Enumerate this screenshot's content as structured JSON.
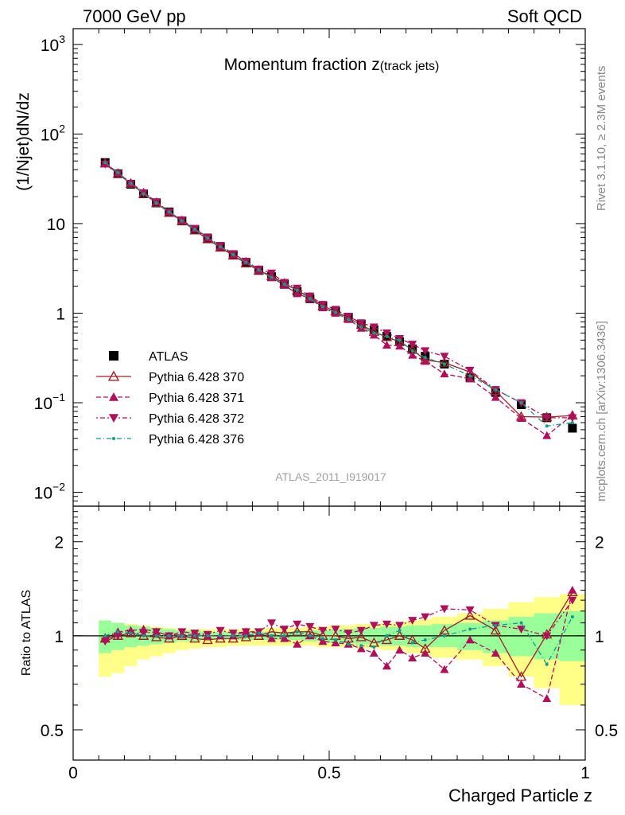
{
  "header": {
    "left": "7000 GeV pp",
    "right": "Soft QCD"
  },
  "side_labels": {
    "top": "Rivet 3.1.10, ≥ 2.3M events",
    "bottom": "mcplots.cern.ch [arXiv:1306.3436]"
  },
  "plot_title_main": "Momentum fraction z",
  "plot_title_sub": "(track jets)",
  "analysis_label": "ATLAS_2011_I919017",
  "top_ylabel": "(1/Njet)dN/dz",
  "bottom_ylabel": "Ratio to ATLAS",
  "xlabel": "Charged Particle z",
  "colors": {
    "atlas": "#000000",
    "p370": "#a0202a",
    "p371": "#b0105a",
    "p372": "#b0105a",
    "p376": "#139a8a",
    "band_green": "#99ff99",
    "band_yellow": "#ffff88"
  },
  "legend": [
    {
      "key": "atlas",
      "label": "ATLAS"
    },
    {
      "key": "p370",
      "label": "Pythia 6.428 370"
    },
    {
      "key": "p371",
      "label": "Pythia 6.428 371"
    },
    {
      "key": "p372",
      "label": "Pythia 6.428 372"
    },
    {
      "key": "p376",
      "label": "Pythia 6.428 376"
    }
  ],
  "chart_data": {
    "type": "scatter",
    "x": [
      0.0625,
      0.0875,
      0.1125,
      0.1375,
      0.1625,
      0.1875,
      0.2125,
      0.2375,
      0.2625,
      0.2875,
      0.3125,
      0.3375,
      0.3625,
      0.3875,
      0.4125,
      0.4375,
      0.4625,
      0.4875,
      0.5125,
      0.5375,
      0.5625,
      0.5875,
      0.6125,
      0.6375,
      0.6625,
      0.6875,
      0.725,
      0.775,
      0.825,
      0.875,
      0.925,
      0.975
    ],
    "x_edges": [
      0.05,
      0.075,
      0.1,
      0.125,
      0.15,
      0.175,
      0.2,
      0.225,
      0.25,
      0.275,
      0.3,
      0.325,
      0.35,
      0.375,
      0.4,
      0.425,
      0.45,
      0.475,
      0.5,
      0.525,
      0.55,
      0.575,
      0.6,
      0.625,
      0.65,
      0.675,
      0.7,
      0.75,
      0.8,
      0.85,
      0.9,
      0.95,
      1.0
    ],
    "xlim": [
      0,
      1
    ],
    "x_ticks": [
      0,
      0.5,
      1
    ],
    "top_panel": {
      "yscale": "log",
      "ylim": [
        0.007,
        1500
      ],
      "y_ticks": [
        {
          "v": 0.01,
          "label": "10",
          "exp": "−2"
        },
        {
          "v": 0.1,
          "label": "10",
          "exp": "−1"
        },
        {
          "v": 1,
          "label": "1",
          "exp": ""
        },
        {
          "v": 10,
          "label": "10",
          "exp": ""
        },
        {
          "v": 100,
          "label": "10",
          "exp": "2"
        },
        {
          "v": 1000,
          "label": "10",
          "exp": "3"
        }
      ],
      "series": [
        {
          "key": "atlas",
          "values": [
            48,
            36,
            27.5,
            21.5,
            17,
            13.5,
            10.7,
            8.6,
            6.9,
            5.5,
            4.5,
            3.7,
            3.0,
            2.55,
            2.1,
            1.75,
            1.45,
            1.2,
            1.05,
            0.9,
            0.75,
            0.65,
            0.55,
            0.48,
            0.4,
            0.33,
            0.27,
            0.19,
            0.13,
            0.095,
            0.068,
            0.052
          ]
        },
        {
          "key": "p370",
          "values": [
            47,
            36,
            28,
            21.5,
            17,
            13.2,
            10.7,
            8.4,
            6.7,
            5.4,
            4.4,
            3.6,
            3.0,
            2.6,
            2.15,
            1.8,
            1.5,
            1.2,
            1.05,
            0.88,
            0.74,
            0.62,
            0.54,
            0.48,
            0.39,
            0.3,
            0.28,
            0.22,
            0.135,
            0.07,
            0.069,
            0.072
          ]
        },
        {
          "key": "p371",
          "values": [
            47,
            37,
            28.5,
            22.5,
            17.5,
            13.5,
            10.8,
            8.7,
            6.9,
            5.5,
            4.5,
            3.8,
            3.05,
            2.5,
            2.05,
            1.65,
            1.45,
            1.15,
            1.0,
            0.85,
            0.68,
            0.57,
            0.44,
            0.43,
            0.34,
            0.29,
            0.21,
            0.185,
            0.115,
            0.067,
            0.043,
            0.073
          ]
        },
        {
          "key": "p372",
          "values": [
            46,
            36,
            28,
            22,
            17.5,
            13.5,
            11,
            8.8,
            7.0,
            5.7,
            4.6,
            3.8,
            3.1,
            2.8,
            2.2,
            1.9,
            1.55,
            1.25,
            1.1,
            0.92,
            0.78,
            0.7,
            0.6,
            0.52,
            0.45,
            0.38,
            0.33,
            0.23,
            0.14,
            0.1,
            0.068,
            0.068
          ]
        },
        {
          "key": "p376",
          "values": [
            48,
            37,
            28,
            21.5,
            17,
            13.5,
            10.7,
            8.6,
            6.9,
            5.5,
            4.5,
            3.7,
            3.05,
            2.5,
            2.1,
            1.8,
            1.45,
            1.18,
            1.02,
            0.85,
            0.7,
            0.6,
            0.55,
            0.5,
            0.38,
            0.32,
            0.27,
            0.2,
            0.14,
            0.1,
            0.055,
            0.06
          ]
        }
      ]
    },
    "bottom_panel": {
      "yscale": "log",
      "ylim": [
        0.4,
        2.6
      ],
      "y_ticks": [
        0.5,
        1,
        2
      ],
      "reference": 1,
      "band_green": [
        [
          0.88,
          1.12
        ],
        [
          0.9,
          1.1
        ],
        [
          0.92,
          1.08
        ],
        [
          0.93,
          1.07
        ],
        [
          0.94,
          1.06
        ],
        [
          0.95,
          1.05
        ],
        [
          0.96,
          1.04
        ],
        [
          0.96,
          1.04
        ],
        [
          0.97,
          1.03
        ],
        [
          0.97,
          1.03
        ],
        [
          0.97,
          1.03
        ],
        [
          0.97,
          1.03
        ],
        [
          0.97,
          1.03
        ],
        [
          0.97,
          1.03
        ],
        [
          0.97,
          1.03
        ],
        [
          0.97,
          1.03
        ],
        [
          0.96,
          1.04
        ],
        [
          0.96,
          1.04
        ],
        [
          0.95,
          1.05
        ],
        [
          0.95,
          1.05
        ],
        [
          0.94,
          1.06
        ],
        [
          0.94,
          1.06
        ],
        [
          0.93,
          1.07
        ],
        [
          0.93,
          1.07
        ],
        [
          0.92,
          1.08
        ],
        [
          0.92,
          1.08
        ],
        [
          0.92,
          1.09
        ],
        [
          0.9,
          1.1
        ],
        [
          0.88,
          1.12
        ],
        [
          0.86,
          1.15
        ],
        [
          0.84,
          1.18
        ],
        [
          0.83,
          1.2
        ]
      ],
      "band_yellow": [
        [
          0.74,
          1.1
        ],
        [
          0.76,
          1.1
        ],
        [
          0.8,
          1.09
        ],
        [
          0.84,
          1.08
        ],
        [
          0.86,
          1.07
        ],
        [
          0.88,
          1.06
        ],
        [
          0.9,
          1.05
        ],
        [
          0.91,
          1.05
        ],
        [
          0.92,
          1.05
        ],
        [
          0.92,
          1.05
        ],
        [
          0.93,
          1.05
        ],
        [
          0.93,
          1.05
        ],
        [
          0.93,
          1.05
        ],
        [
          0.93,
          1.06
        ],
        [
          0.93,
          1.06
        ],
        [
          0.93,
          1.06
        ],
        [
          0.93,
          1.07
        ],
        [
          0.92,
          1.07
        ],
        [
          0.92,
          1.08
        ],
        [
          0.92,
          1.08
        ],
        [
          0.91,
          1.09
        ],
        [
          0.91,
          1.09
        ],
        [
          0.9,
          1.1
        ],
        [
          0.9,
          1.1
        ],
        [
          0.88,
          1.12
        ],
        [
          0.87,
          1.13
        ],
        [
          0.85,
          1.15
        ],
        [
          0.84,
          1.18
        ],
        [
          0.8,
          1.22
        ],
        [
          0.74,
          1.28
        ],
        [
          0.68,
          1.33
        ],
        [
          0.6,
          1.36
        ]
      ],
      "series": [
        {
          "key": "p370",
          "values": [
            0.98,
            1.0,
            1.02,
            1.0,
            0.99,
            0.98,
            1.0,
            0.98,
            0.97,
            0.98,
            0.98,
            0.99,
            1.0,
            1.03,
            1.02,
            1.03,
            1.03,
            1.0,
            1.0,
            0.98,
            0.99,
            0.95,
            0.97,
            1.0,
            0.97,
            0.91,
            1.04,
            1.16,
            1.04,
            0.74,
            1.01,
            1.38
          ]
        },
        {
          "key": "p371",
          "values": [
            0.98,
            1.03,
            1.04,
            1.05,
            1.03,
            1.0,
            1.01,
            1.01,
            1.0,
            1.0,
            1.0,
            1.03,
            1.02,
            0.98,
            0.98,
            0.94,
            1.0,
            0.96,
            0.95,
            0.94,
            0.91,
            0.88,
            0.8,
            0.9,
            0.85,
            0.88,
            0.78,
            0.97,
            0.88,
            0.7,
            0.63,
            1.4
          ]
        },
        {
          "key": "p372",
          "values": [
            0.96,
            1.0,
            1.02,
            1.02,
            1.03,
            1.0,
            1.03,
            1.02,
            1.01,
            1.04,
            1.02,
            1.03,
            1.03,
            1.1,
            1.05,
            1.09,
            1.07,
            1.04,
            1.05,
            1.02,
            1.04,
            1.08,
            1.09,
            1.08,
            1.12,
            1.15,
            1.22,
            1.21,
            1.08,
            1.05,
            1.0,
            1.3
          ]
        },
        {
          "key": "p376",
          "values": [
            1.0,
            1.03,
            1.02,
            1.0,
            1.0,
            1.0,
            1.0,
            1.0,
            1.0,
            1.0,
            1.0,
            1.0,
            1.02,
            1.0,
            1.0,
            1.03,
            1.0,
            0.98,
            0.97,
            0.94,
            0.93,
            0.92,
            1.0,
            1.04,
            0.95,
            0.97,
            1.0,
            1.05,
            1.08,
            1.1,
            0.81,
            1.15
          ]
        }
      ]
    }
  }
}
